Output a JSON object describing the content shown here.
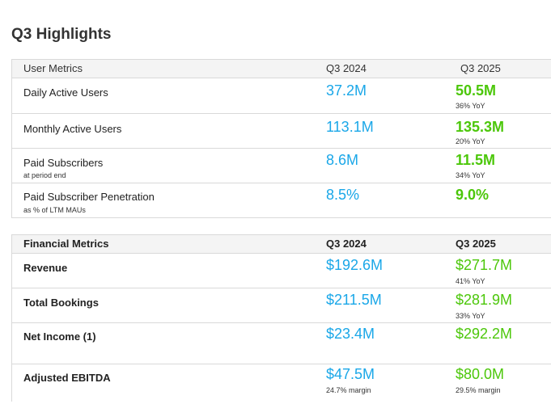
{
  "title": "Q3 Highlights",
  "colors": {
    "q3_2024_value": "#1aa7e8",
    "q3_2025_value": "#4cc70a",
    "header_bg": "#f4f4f4",
    "border": "#d9d9d9"
  },
  "user_metrics": {
    "header": {
      "label": "User Metrics",
      "col1": "Q3 2024",
      "col2": "Q3 2025"
    },
    "rows": [
      {
        "label": "Daily Active Users",
        "sub": "",
        "q3_2024": "37.2M",
        "q3_2025": "50.5M",
        "note_2024": "",
        "note_2025": "36% YoY"
      },
      {
        "label": "Monthly Active Users",
        "sub": "",
        "q3_2024": "113.1M",
        "q3_2025": "135.3M",
        "note_2024": "",
        "note_2025": "20% YoY"
      },
      {
        "label": "Paid Subscribers",
        "sub": "at period end",
        "q3_2024": "8.6M",
        "q3_2025": "11.5M",
        "note_2024": "",
        "note_2025": "34% YoY"
      },
      {
        "label": "Paid Subscriber Penetration",
        "sub": "as % of LTM MAUs",
        "q3_2024": "8.5%",
        "q3_2025": "9.0%",
        "note_2024": "",
        "note_2025": ""
      }
    ]
  },
  "financial_metrics": {
    "header": {
      "label": "Financial Metrics",
      "col1": "Q3 2024",
      "col2": "Q3 2025"
    },
    "rows": [
      {
        "label": "Revenue",
        "q3_2024": "$192.6M",
        "q3_2025": "$271.7M",
        "note_2024": "",
        "note_2025": "41% YoY"
      },
      {
        "label": "Total Bookings",
        "q3_2024": "$211.5M",
        "q3_2025": "$281.9M",
        "note_2024": "",
        "note_2025": "33% YoY"
      },
      {
        "label": "Net Income (1)",
        "q3_2024": "$23.4M",
        "q3_2025": "$292.2M",
        "note_2024": "",
        "note_2025": ""
      },
      {
        "label": "Adjusted EBITDA",
        "q3_2024": "$47.5M",
        "q3_2025": "$80.0M",
        "note_2024": "24.7% margin",
        "note_2025": "29.5% margin"
      }
    ]
  }
}
